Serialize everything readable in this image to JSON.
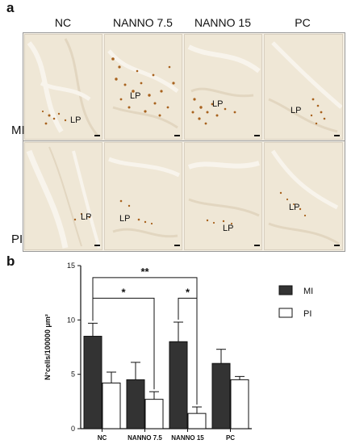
{
  "panel_a": {
    "label": "a",
    "columns": [
      "NC",
      "NANNO 7.5",
      "NANNO 15",
      "PC"
    ],
    "rows": [
      "MI",
      "PI"
    ],
    "region_label": "LP"
  },
  "panel_b": {
    "label": "b"
  },
  "colors": {
    "mi_bar": "#333333",
    "pi_bar": "#ffffff",
    "stain": "#a8621e",
    "tissue": "#efe7d6"
  },
  "chart_data": {
    "type": "bar",
    "categories": [
      "NC",
      "NANNO 7.5",
      "NANNO 15",
      "PC"
    ],
    "series": [
      {
        "name": "MI",
        "values": [
          8.5,
          4.5,
          8.0,
          6.0
        ],
        "errors": [
          1.2,
          1.6,
          1.8,
          1.3
        ]
      },
      {
        "name": "PI",
        "values": [
          4.2,
          2.7,
          1.4,
          4.5
        ],
        "errors": [
          1.0,
          0.7,
          0.6,
          0.3
        ]
      }
    ],
    "ylabel": "N°cells/100000 μm²",
    "ylim": [
      0,
      15
    ],
    "yticks": [
      0,
      5,
      10,
      15
    ],
    "legend_position": "top-right",
    "significance": [
      {
        "from": "NC",
        "to": "NANNO 7.5",
        "label": "*"
      },
      {
        "from": "NC",
        "to": "NANNO 15",
        "label": "**"
      },
      {
        "from": "NANNO 15 MI",
        "to": "NANNO 15 PI",
        "label": "*"
      }
    ]
  }
}
